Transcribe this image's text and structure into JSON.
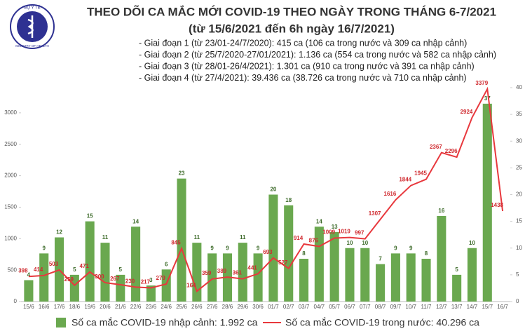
{
  "logo": {
    "top": "BỘ Y TẾ",
    "bottom": "MINISTRY OF HEALTH"
  },
  "chart_data": {
    "type": "combo",
    "title": "THEO DÕI CA MẮC MỚI COVID-19 THEO NGÀY TRONG THÁNG 6-7/2021",
    "subtitle": "(từ 15/6/2021 đến 6h ngày 16/7/2021)",
    "notes": [
      "- Giai đoạn 1 (từ 23/01-24/7/2020): 415 ca (106 ca trong nước và 309 ca nhập cảnh)",
      "- Giai đoạn 2 (từ 25/7/2020-27/01/2021): 1.136 ca (554 ca trong nước và 582 ca nhập cảnh)",
      "- Giai đoạn 3 (từ 28/01-26/4/2021): 1.301 ca (910 ca trong nước và 391 ca nhập cảnh)",
      "- Giai đoạn 4 (từ 27/4/2021): 39.436 ca (38.726 ca trong nước và 710 ca nhập cảnh)"
    ],
    "categories": [
      "15/6",
      "16/6",
      "17/6",
      "18/6",
      "19/6",
      "20/6",
      "21/6",
      "22/6",
      "23/6",
      "24/6",
      "25/6",
      "26/6",
      "27/6",
      "28/6",
      "29/6",
      "30/6",
      "01/7",
      "02/7",
      "03/7",
      "04/7",
      "05/7",
      "06/7",
      "07/7",
      "08/7",
      "09/7",
      "10/7",
      "11/7",
      "12/7",
      "13/7",
      "14/7",
      "15/7",
      "16/7"
    ],
    "series": [
      {
        "name": "Số ca mắc COVID-19 nhập cảnh: 1.992 ca",
        "type": "bar",
        "axis": "y2",
        "color": "#6aa84f",
        "label_color": "#3d6b2a",
        "values": [
          4,
          9,
          12,
          5,
          15,
          11,
          5,
          14,
          3,
          6,
          23,
          11,
          9,
          9,
          11,
          9,
          20,
          18,
          8,
          14,
          13,
          10,
          10,
          7,
          9,
          9,
          8,
          16,
          5,
          10,
          37,
          null
        ]
      },
      {
        "name": "Số ca mắc COVID-19 trong nước: 40.296 ca",
        "type": "line",
        "color": "#e8383d",
        "label_color": "#d02a2f",
        "values": [
          398,
          414,
          503,
          259,
          471,
          300,
          267,
          230,
          217,
          279,
          845,
          164,
          359,
          389,
          361,
          441,
          693,
          527,
          914,
          876,
          1009,
          1019,
          997,
          1307,
          1616,
          1844,
          1945,
          2367,
          2296,
          2924,
          3379,
          1438
        ]
      }
    ],
    "ylim": [
      0,
      3400
    ],
    "yticks": [
      0,
      500,
      1000,
      1500,
      2000,
      2500,
      3000
    ],
    "y2lim": [
      0,
      40
    ],
    "y2ticks": [
      0,
      5,
      10,
      15,
      20,
      25,
      30,
      35,
      40
    ],
    "grid": false
  }
}
